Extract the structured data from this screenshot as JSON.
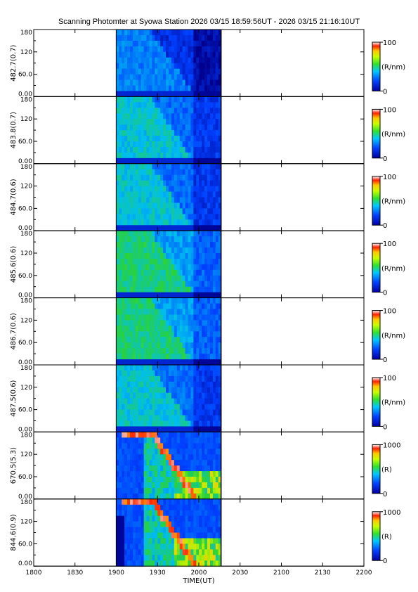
{
  "title": "Scanning Photomter at Syowa Station 2026 03/15 18:59:56UT - 2026 03/15 21:16:10UT",
  "chart_data": {
    "type": "heatmap",
    "xlabel": "TIME(UT)",
    "x_ticks": [
      "1800",
      "1830",
      "1900",
      "1930",
      "2000",
      "2030",
      "2100",
      "2130",
      "2200"
    ],
    "x_range": [
      "18:00",
      "22:00"
    ],
    "data_range": [
      "18:59:56",
      "21:16:10"
    ],
    "y_range": [
      0,
      180
    ],
    "y_ticks": [
      "180",
      "120",
      "60.0",
      "0.00"
    ],
    "panels": [
      {
        "label": "482.7(0.7)",
        "colorbar": {
          "max": "100",
          "mid": "(R/nm)",
          "min": "0"
        },
        "intensity": "low"
      },
      {
        "label": "483.8(0.7)",
        "colorbar": {
          "max": "100",
          "mid": "(R/nm)",
          "min": "0"
        },
        "intensity": "medium"
      },
      {
        "label": "484.7(0.6)",
        "colorbar": {
          "max": "100",
          "mid": "(R/nm)",
          "min": "0"
        },
        "intensity": "medium"
      },
      {
        "label": "485.6(0.6)",
        "colorbar": {
          "max": "100",
          "mid": "(R/nm)",
          "min": "0"
        },
        "intensity": "high"
      },
      {
        "label": "486.7(0.6)",
        "colorbar": {
          "max": "100",
          "mid": "(R/nm)",
          "min": "0"
        },
        "intensity": "high"
      },
      {
        "label": "487.5(0.6)",
        "colorbar": {
          "max": "100",
          "mid": "(R/nm)",
          "min": "0"
        },
        "intensity": "medium"
      },
      {
        "label": "670.5(5.3)",
        "colorbar": {
          "max": "1000",
          "mid": "(R)",
          "min": "0"
        },
        "intensity": "arc"
      },
      {
        "label": "844.6(0.9)",
        "colorbar": {
          "max": "1000",
          "mid": "(R)",
          "min": "0"
        },
        "intensity": "arc"
      }
    ]
  }
}
